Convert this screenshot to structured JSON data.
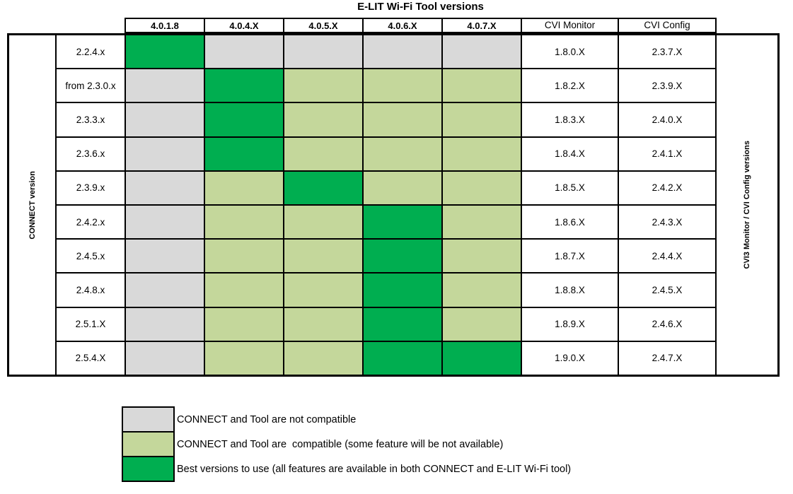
{
  "colors": {
    "not_compatible": "#D9D9D9",
    "compatible": "#C4D79B",
    "best": "#00AE50",
    "grid_line": "#000000"
  },
  "chart_data": {
    "type": "heatmap",
    "title": "E-LIT Wi-Fi Tool versions",
    "left_axis_label": "CONNECT version",
    "right_axis_label": "CVI3 Monitor / CVI Config versions",
    "tool_version_columns": [
      "4.0.1.8",
      "4.0.4.X",
      "4.0.5.X",
      "4.0.6.X",
      "4.0.7.X"
    ],
    "cvi_monitor_header": "CVI Monitor",
    "cvi_config_header": "CVI Config",
    "rows": [
      {
        "connect_version": "2.2.4.x",
        "compatibility": [
          "best",
          "not_compatible",
          "not_compatible",
          "not_compatible",
          "not_compatible"
        ],
        "cvi_monitor": "1.8.0.X",
        "cvi_config": "2.3.7.X"
      },
      {
        "connect_version": "from 2.3.0.x",
        "compatibility": [
          "not_compatible",
          "best",
          "compatible",
          "compatible",
          "compatible"
        ],
        "cvi_monitor": "1.8.2.X",
        "cvi_config": "2.3.9.X"
      },
      {
        "connect_version": "2.3.3.x",
        "compatibility": [
          "not_compatible",
          "best",
          "compatible",
          "compatible",
          "compatible"
        ],
        "cvi_monitor": "1.8.3.X",
        "cvi_config": "2.4.0.X"
      },
      {
        "connect_version": "2.3.6.x",
        "compatibility": [
          "not_compatible",
          "best",
          "compatible",
          "compatible",
          "compatible"
        ],
        "cvi_monitor": "1.8.4.X",
        "cvi_config": "2.4.1.X"
      },
      {
        "connect_version": "2.3.9.x",
        "compatibility": [
          "not_compatible",
          "compatible",
          "best",
          "compatible",
          "compatible"
        ],
        "cvi_monitor": "1.8.5.X",
        "cvi_config": "2.4.2.X"
      },
      {
        "connect_version": "2.4.2.x",
        "compatibility": [
          "not_compatible",
          "compatible",
          "compatible",
          "best",
          "compatible"
        ],
        "cvi_monitor": "1.8.6.X",
        "cvi_config": "2.4.3.X"
      },
      {
        "connect_version": "2.4.5.x",
        "compatibility": [
          "not_compatible",
          "compatible",
          "compatible",
          "best",
          "compatible"
        ],
        "cvi_monitor": "1.8.7.X",
        "cvi_config": "2.4.4.X"
      },
      {
        "connect_version": "2.4.8.x",
        "compatibility": [
          "not_compatible",
          "compatible",
          "compatible",
          "best",
          "compatible"
        ],
        "cvi_monitor": "1.8.8.X",
        "cvi_config": "2.4.5.X"
      },
      {
        "connect_version": "2.5.1.X",
        "compatibility": [
          "not_compatible",
          "compatible",
          "compatible",
          "best",
          "compatible"
        ],
        "cvi_monitor": "1.8.9.X",
        "cvi_config": "2.4.6.X"
      },
      {
        "connect_version": "2.5.4.X",
        "compatibility": [
          "not_compatible",
          "compatible",
          "compatible",
          "best",
          "best"
        ],
        "cvi_monitor": "1.9.0.X",
        "cvi_config": "2.4.7.X"
      }
    ],
    "legend": [
      {
        "key": "not_compatible",
        "label": "CONNECT and Tool are not compatible"
      },
      {
        "key": "compatible",
        "label": "CONNECT and Tool are  compatible (some feature will be not available)"
      },
      {
        "key": "best",
        "label": "Best versions to use (all features are available in both CONNECT and E-LIT Wi-Fi tool)"
      }
    ]
  }
}
